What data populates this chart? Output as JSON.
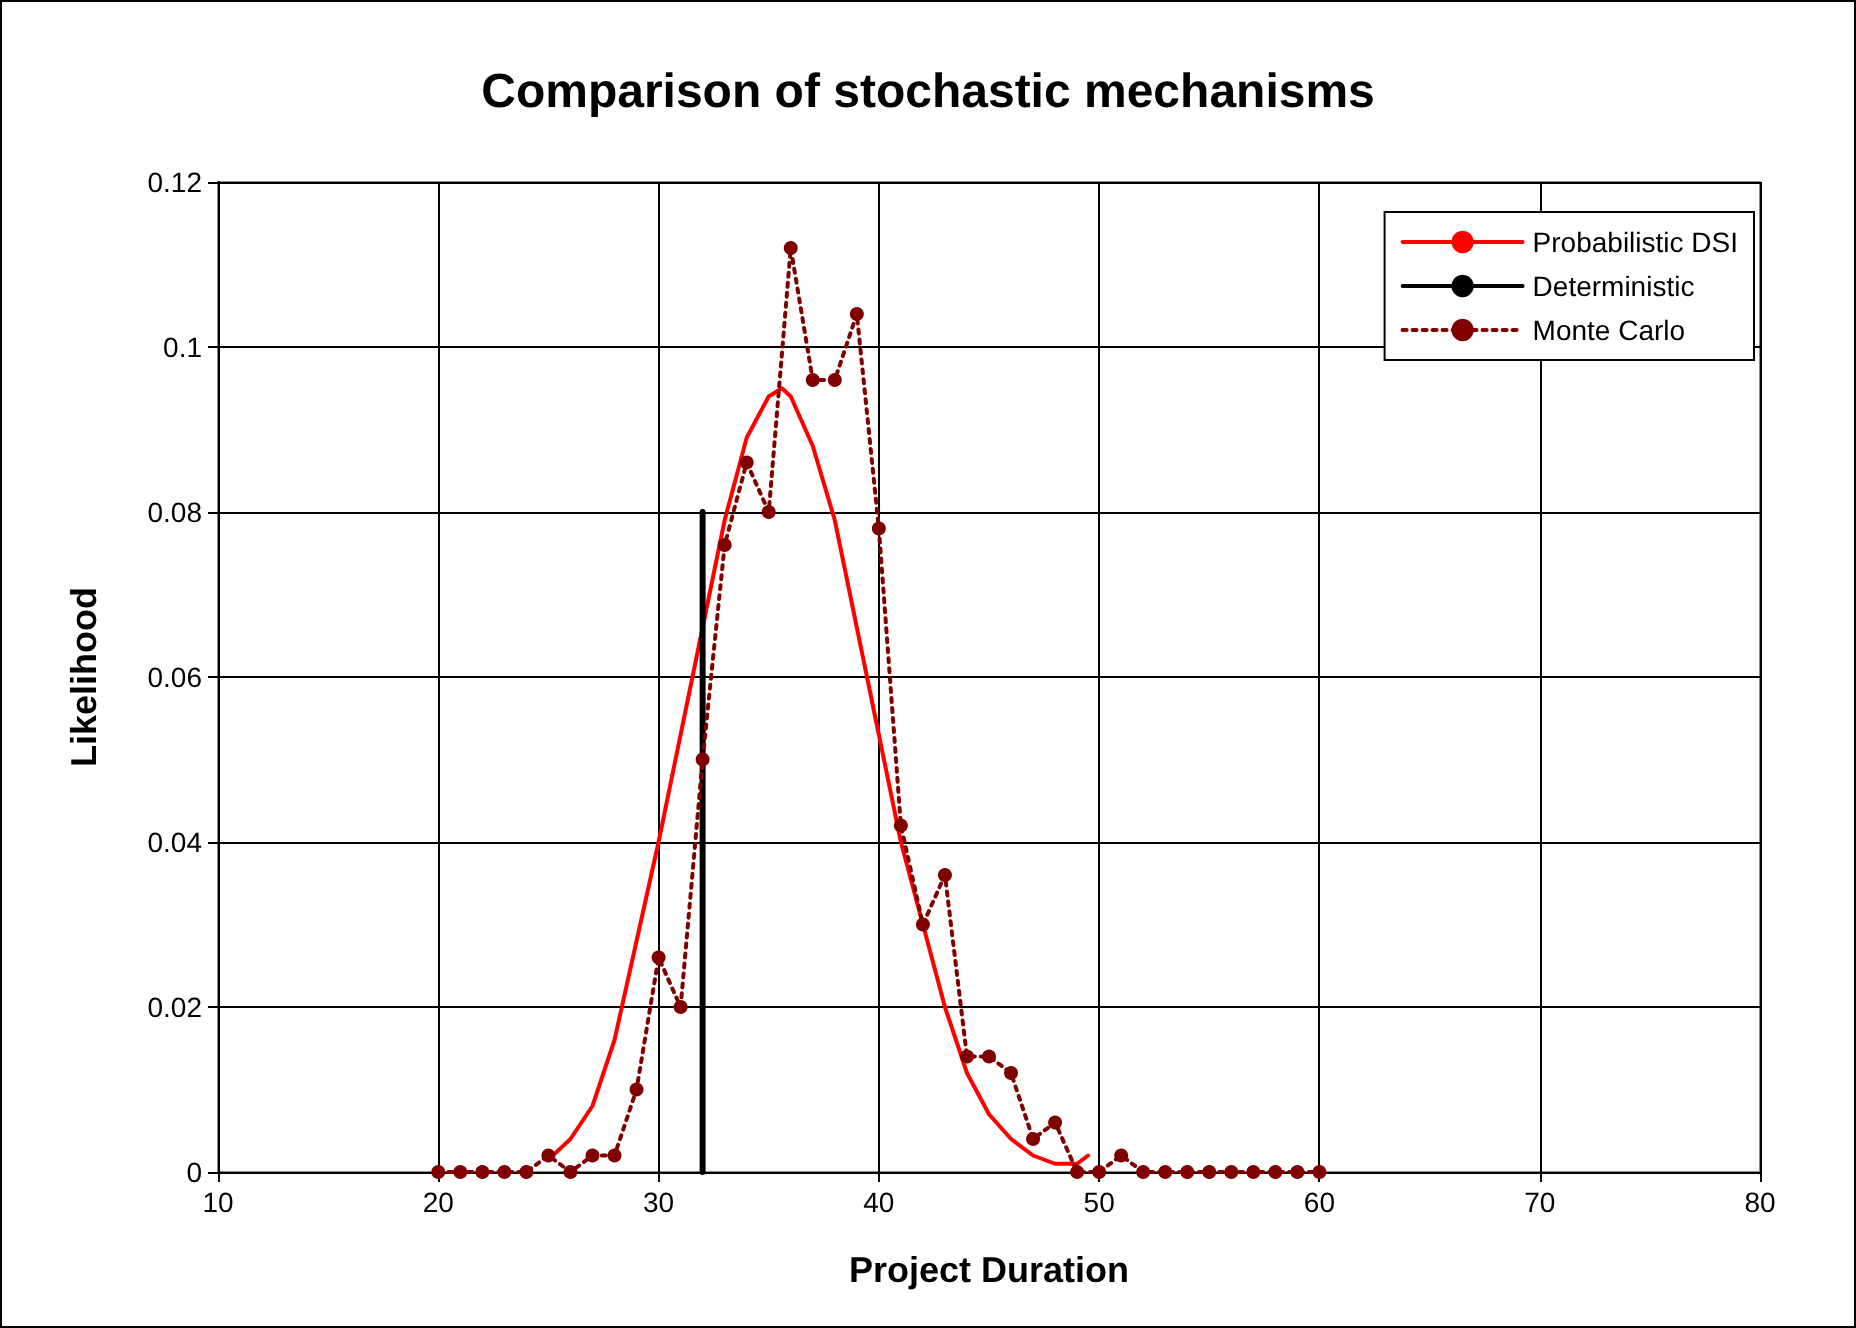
{
  "chart_data": {
    "type": "line",
    "title": "Comparison of stochastic mechanisms",
    "xlabel": "Project Duration",
    "ylabel": "Likelihood",
    "xlim": [
      10,
      80
    ],
    "xticks": [
      10,
      20,
      30,
      40,
      50,
      60,
      70,
      80
    ],
    "ylim": [
      0,
      0.12
    ],
    "yticks": [
      0,
      0.02,
      0.04,
      0.06,
      0.08,
      0.1,
      0.12
    ],
    "grid": true,
    "legend": "top right",
    "series": [
      {
        "name": "Probabilistic DSI",
        "color": "#ff0000",
        "line_style": "solid",
        "marker": "none",
        "x": [
          25,
          26,
          27,
          28,
          29,
          30,
          31,
          32,
          33,
          34,
          35,
          35.6,
          36,
          37,
          38,
          39,
          40,
          41,
          42,
          43,
          44,
          45,
          46,
          47,
          48,
          49,
          49.5
        ],
        "values": [
          0.0015,
          0.004,
          0.008,
          0.016,
          0.028,
          0.04,
          0.053,
          0.066,
          0.079,
          0.089,
          0.094,
          0.095,
          0.094,
          0.088,
          0.079,
          0.066,
          0.053,
          0.04,
          0.03,
          0.02,
          0.012,
          0.007,
          0.004,
          0.002,
          0.001,
          0.001,
          0.002
        ]
      },
      {
        "name": "Deterministic",
        "color": "#000000",
        "line_style": "solid",
        "marker": "none",
        "x": [
          32,
          32
        ],
        "values": [
          0,
          0.08
        ]
      },
      {
        "name": "Monte Carlo",
        "color": "#800000",
        "line_style": "dotted",
        "marker": "circle",
        "x": [
          20,
          21,
          22,
          23,
          24,
          25,
          26,
          27,
          28,
          29,
          30,
          31,
          32,
          33,
          34,
          35,
          36,
          37,
          38,
          39,
          40,
          41,
          42,
          43,
          44,
          45,
          46,
          47,
          48,
          49,
          50,
          51,
          52,
          53,
          54,
          55,
          56,
          57,
          58,
          59,
          60
        ],
        "values": [
          0,
          0,
          0,
          0,
          0,
          0.002,
          0,
          0.002,
          0.002,
          0.01,
          0.026,
          0.02,
          0.05,
          0.076,
          0.086,
          0.08,
          0.112,
          0.096,
          0.096,
          0.104,
          0.078,
          0.042,
          0.03,
          0.036,
          0.014,
          0.014,
          0.012,
          0.004,
          0.006,
          0,
          0,
          0.002,
          0,
          0,
          0,
          0,
          0,
          0,
          0,
          0,
          0
        ]
      }
    ]
  }
}
